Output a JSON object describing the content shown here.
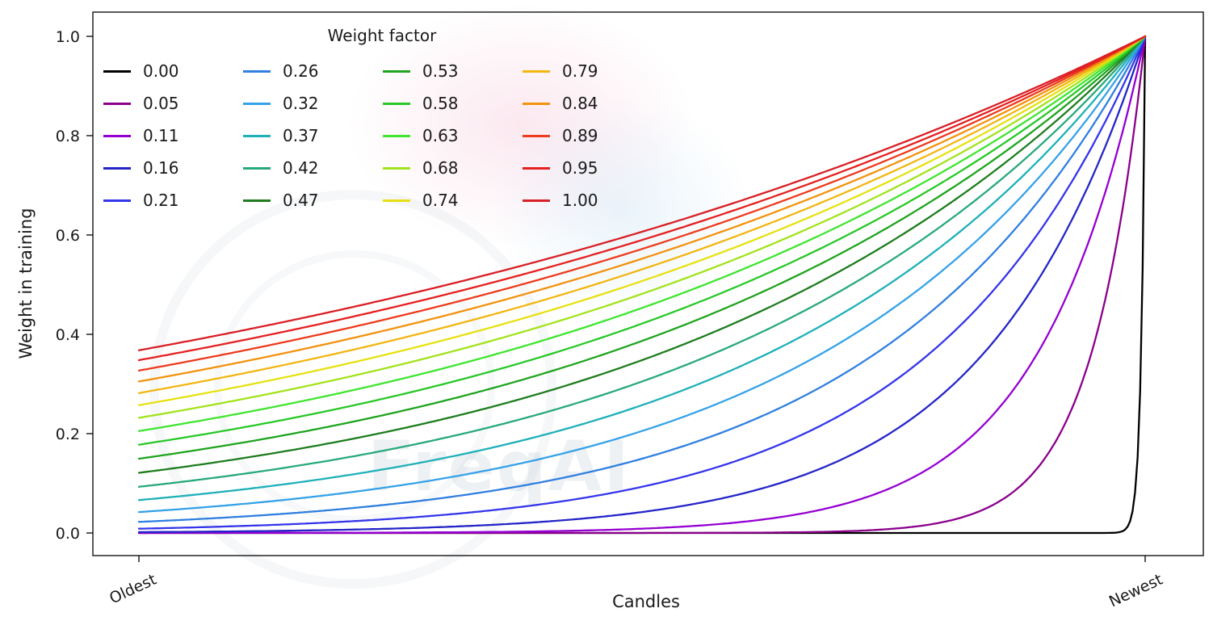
{
  "chart_data": {
    "type": "line",
    "title": "",
    "xlabel": "Candles",
    "ylabel": "Weight in training",
    "legend_title": "Weight factor",
    "legend_position": "upper left",
    "grid": false,
    "ylim": [
      0,
      1
    ],
    "y_ticks": [
      {
        "label": "0.0",
        "value": 0.0
      },
      {
        "label": "0.2",
        "value": 0.2
      },
      {
        "label": "0.4",
        "value": 0.4
      },
      {
        "label": "0.6",
        "value": 0.6
      },
      {
        "label": "0.8",
        "value": 0.8
      },
      {
        "label": "1.0",
        "value": 1.0
      }
    ],
    "x_ticks": [
      {
        "label": "Oldest",
        "value": 0
      },
      {
        "label": "Newest",
        "value": 1
      }
    ],
    "curve_formula": "weight(t) = exp(-(1 - t) / weight_factor), t in [0,1] from Oldest to Newest; all curves reach 1.0 at Newest",
    "series": [
      {
        "label": "0.00",
        "factor": 0.0,
        "color": "#000000",
        "start_value": 0.0
      },
      {
        "label": "0.05",
        "factor": 0.0526,
        "color": "#8b008b",
        "start_value": 0.0
      },
      {
        "label": "0.11",
        "factor": 0.1053,
        "color": "#9400d3",
        "start_value": 0.0001
      },
      {
        "label": "0.16",
        "factor": 0.1579,
        "color": "#2424c8",
        "start_value": 0.0018
      },
      {
        "label": "0.21",
        "factor": 0.2105,
        "color": "#3535ec",
        "start_value": 0.0087
      },
      {
        "label": "0.26",
        "factor": 0.2632,
        "color": "#2f7fe0",
        "start_value": 0.022
      },
      {
        "label": "0.32",
        "factor": 0.3158,
        "color": "#35a2e8",
        "start_value": 0.042
      },
      {
        "label": "0.37",
        "factor": 0.3684,
        "color": "#1fb0b8",
        "start_value": 0.066
      },
      {
        "label": "0.42",
        "factor": 0.4211,
        "color": "#28a97b",
        "start_value": 0.093
      },
      {
        "label": "0.47",
        "factor": 0.4737,
        "color": "#1e7d1e",
        "start_value": 0.121
      },
      {
        "label": "0.53",
        "factor": 0.5263,
        "color": "#1fa41f",
        "start_value": 0.15
      },
      {
        "label": "0.58",
        "factor": 0.5789,
        "color": "#28c828",
        "start_value": 0.178
      },
      {
        "label": "0.63",
        "factor": 0.6316,
        "color": "#3fe52f",
        "start_value": 0.205
      },
      {
        "label": "0.68",
        "factor": 0.6842,
        "color": "#a2e31c",
        "start_value": 0.232
      },
      {
        "label": "0.74",
        "factor": 0.7368,
        "color": "#e6e112",
        "start_value": 0.257
      },
      {
        "label": "0.79",
        "factor": 0.7895,
        "color": "#f2b612",
        "start_value": 0.282
      },
      {
        "label": "0.84",
        "factor": 0.8421,
        "color": "#f2920e",
        "start_value": 0.305
      },
      {
        "label": "0.89",
        "factor": 0.8947,
        "color": "#ec3b1d",
        "start_value": 0.327
      },
      {
        "label": "0.95",
        "factor": 0.9474,
        "color": "#e52020",
        "start_value": 0.348
      },
      {
        "label": "1.00",
        "factor": 1.0,
        "color": "#d91f26",
        "start_value": 0.368
      }
    ],
    "watermark": "FreqAI"
  }
}
